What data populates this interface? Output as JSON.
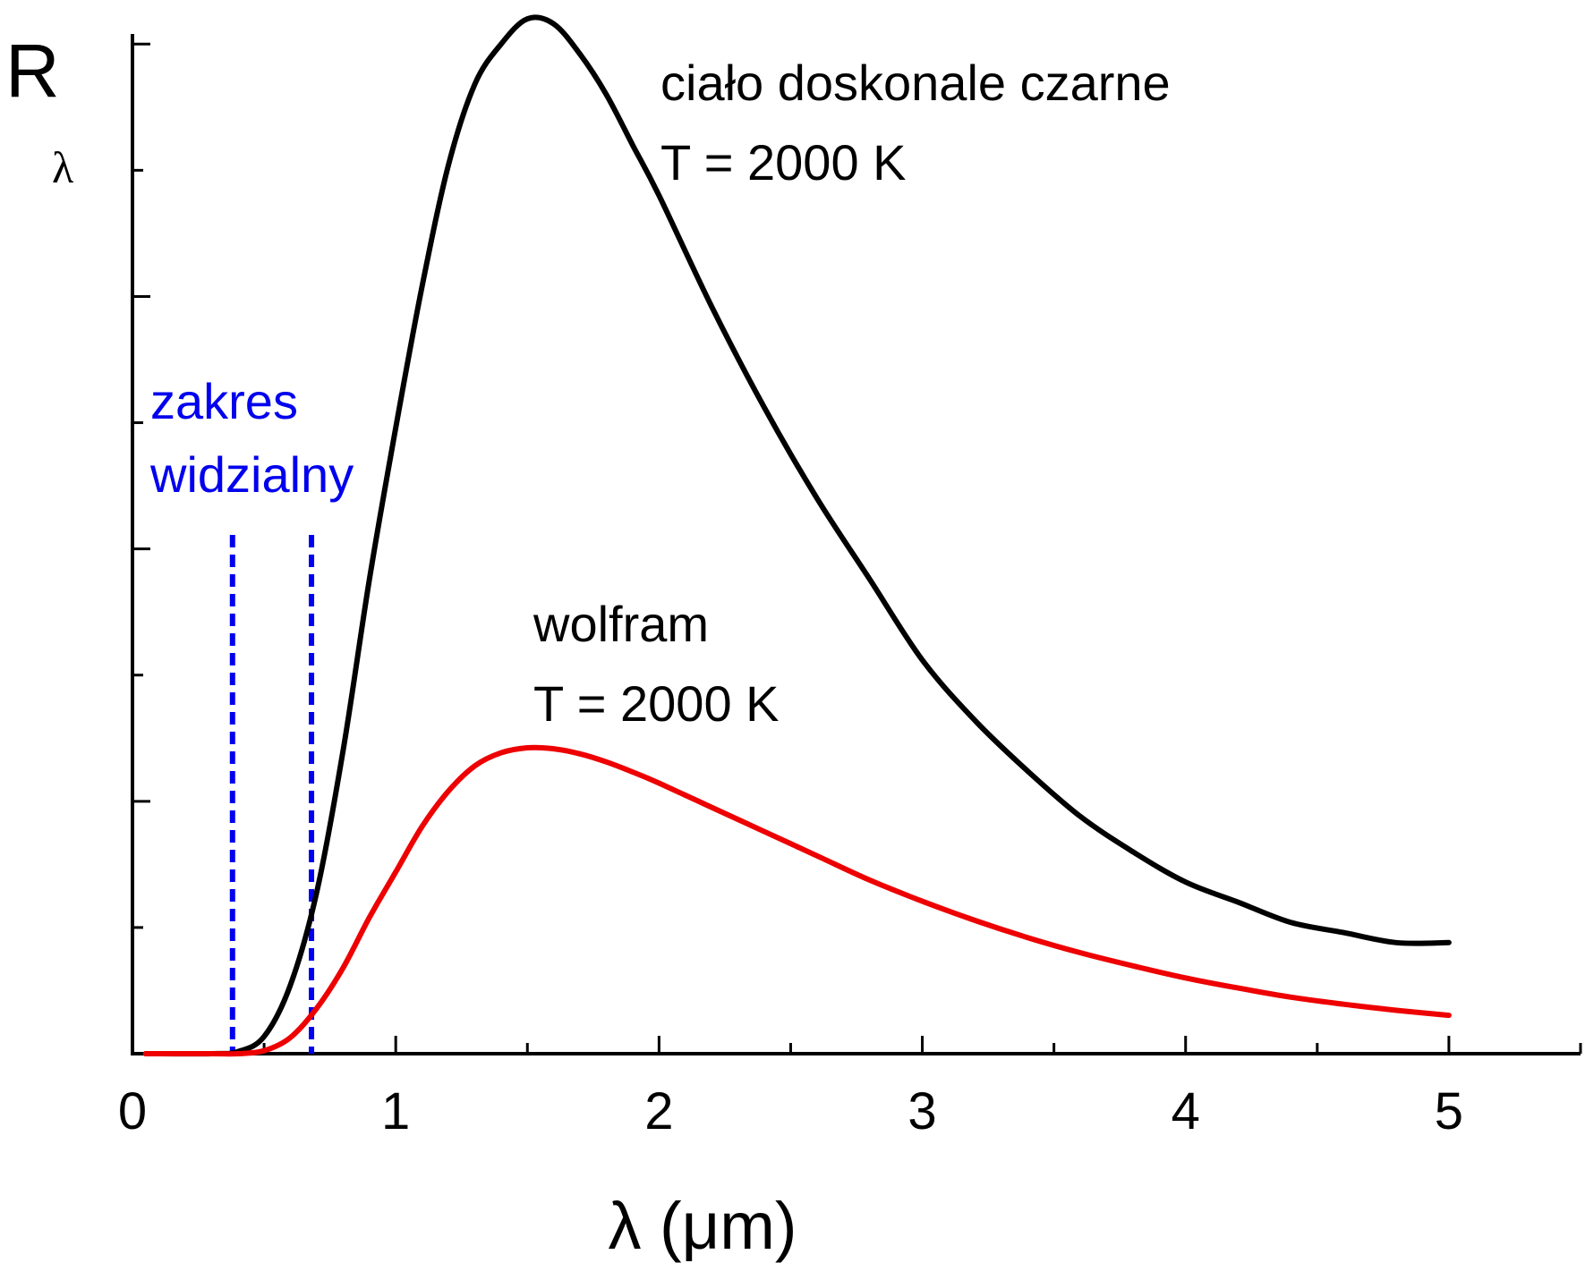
{
  "chart_data": {
    "type": "line",
    "xlabel": "λ (μm)",
    "ylabel_main": "R",
    "ylabel_sub": "λ",
    "xlim": [
      0,
      5.5
    ],
    "ylim": [
      0,
      1.01
    ],
    "x_ticks": [
      0,
      1,
      2,
      3,
      4,
      5
    ],
    "x_ticks_minor": [
      0.5,
      1.5,
      2.5,
      3.5,
      4.5,
      5.5
    ],
    "y_tick_values": [
      0.125,
      0.25,
      0.375,
      0.5,
      0.625,
      0.75,
      0.875,
      1.0
    ],
    "y_tick_labels": false,
    "series": [
      {
        "name": "ciało doskonale czarne",
        "color": "#000000",
        "x": [
          0.05,
          0.3,
          0.4,
          0.5,
          0.6,
          0.7,
          0.8,
          0.9,
          1.0,
          1.1,
          1.2,
          1.3,
          1.4,
          1.5,
          1.6,
          1.7,
          1.8,
          1.9,
          2.0,
          2.2,
          2.4,
          2.6,
          2.8,
          3.0,
          3.2,
          3.4,
          3.6,
          3.8,
          4.0,
          4.2,
          4.4,
          4.6,
          4.8,
          5.0
        ],
        "y": [
          0.0,
          0.0,
          0.002,
          0.017,
          0.068,
          0.16,
          0.3,
          0.47,
          0.62,
          0.76,
          0.88,
          0.96,
          1.0,
          1.025,
          1.02,
          0.99,
          0.95,
          0.9,
          0.85,
          0.74,
          0.64,
          0.55,
          0.47,
          0.39,
          0.33,
          0.28,
          0.235,
          0.2,
          0.17,
          0.15,
          0.13,
          0.12,
          0.11,
          0.11
        ]
      },
      {
        "name": "wolfram",
        "color": "#ee0000",
        "x": [
          0.05,
          0.3,
          0.4,
          0.5,
          0.6,
          0.7,
          0.8,
          0.9,
          1.0,
          1.1,
          1.2,
          1.3,
          1.4,
          1.5,
          1.6,
          1.7,
          1.8,
          1.9,
          2.0,
          2.2,
          2.4,
          2.6,
          2.8,
          3.0,
          3.2,
          3.4,
          3.6,
          3.8,
          4.0,
          4.2,
          4.4,
          4.6,
          4.8,
          5.0
        ],
        "y": [
          0.0,
          0.0,
          0.0,
          0.003,
          0.016,
          0.045,
          0.085,
          0.135,
          0.18,
          0.225,
          0.26,
          0.285,
          0.298,
          0.303,
          0.302,
          0.297,
          0.289,
          0.279,
          0.268,
          0.244,
          0.22,
          0.196,
          0.172,
          0.151,
          0.132,
          0.115,
          0.1,
          0.087,
          0.075,
          0.065,
          0.056,
          0.049,
          0.043,
          0.038
        ]
      }
    ],
    "visible_range_lines": {
      "color": "#0000ee",
      "x": [
        0.38,
        0.68
      ]
    },
    "annotations": {
      "blackbody_line1": "ciało doskonale czarne",
      "blackbody_line2": "T = 2000 K",
      "tungsten_line1": "wolfram",
      "tungsten_line2": "T = 2000 K",
      "visible_line1": "zakres",
      "visible_line2": "widzialny"
    }
  }
}
